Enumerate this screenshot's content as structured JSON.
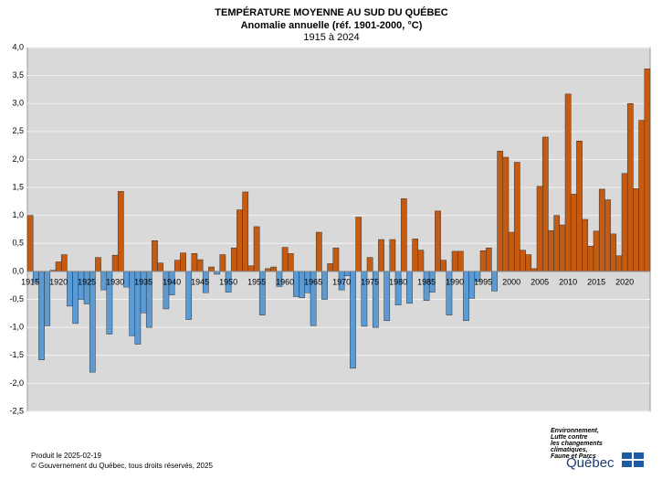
{
  "chart_data": {
    "type": "bar",
    "title": "TEMPÉRATURE MOYENNE AU SUD DU QUÉBEC",
    "subtitle": "Anomalie annuelle (réf. 1901-2000, °C)",
    "period": "1915 à 2024",
    "x": [
      1915,
      1916,
      1917,
      1918,
      1919,
      1920,
      1921,
      1922,
      1923,
      1924,
      1925,
      1926,
      1927,
      1928,
      1929,
      1930,
      1931,
      1932,
      1933,
      1934,
      1935,
      1936,
      1937,
      1938,
      1939,
      1940,
      1941,
      1942,
      1943,
      1944,
      1945,
      1946,
      1947,
      1948,
      1949,
      1950,
      1951,
      1952,
      1953,
      1954,
      1955,
      1956,
      1957,
      1958,
      1959,
      1960,
      1961,
      1962,
      1963,
      1964,
      1965,
      1966,
      1967,
      1968,
      1969,
      1970,
      1971,
      1972,
      1973,
      1974,
      1975,
      1976,
      1977,
      1978,
      1979,
      1980,
      1981,
      1982,
      1983,
      1984,
      1985,
      1986,
      1987,
      1988,
      1989,
      1990,
      1991,
      1992,
      1993,
      1994,
      1995,
      1996,
      1997,
      1998,
      1999,
      2000,
      2001,
      2002,
      2003,
      2004,
      2005,
      2006,
      2007,
      2008,
      2009,
      2010,
      2011,
      2012,
      2013,
      2014,
      2015,
      2016,
      2017,
      2018,
      2019,
      2020,
      2021,
      2022,
      2023,
      2024
    ],
    "values": [
      1.0,
      -0.2,
      -1.58,
      -0.97,
      0.02,
      0.17,
      0.3,
      -0.62,
      -0.93,
      -0.5,
      -0.58,
      -1.8,
      0.25,
      -0.33,
      -1.12,
      0.29,
      1.43,
      -0.28,
      -1.15,
      -1.3,
      -0.74,
      -1.0,
      0.55,
      0.15,
      -0.67,
      -0.42,
      0.2,
      0.33,
      -0.86,
      0.32,
      0.21,
      -0.38,
      0.08,
      -0.05,
      0.3,
      -0.37,
      0.42,
      1.1,
      1.42,
      0.1,
      0.8,
      -0.78,
      0.05,
      0.08,
      -0.27,
      0.43,
      0.32,
      -0.45,
      -0.47,
      -0.38,
      -0.97,
      0.7,
      -0.5,
      0.14,
      0.42,
      -0.33,
      -0.08,
      -1.73,
      0.97,
      -0.98,
      0.25,
      -1.0,
      0.57,
      -0.88,
      0.57,
      -0.6,
      1.3,
      -0.57,
      0.58,
      0.38,
      -0.52,
      -0.37,
      1.08,
      0.2,
      -0.78,
      0.36,
      0.36,
      -0.88,
      -0.48,
      -0.18,
      0.37,
      0.42,
      -0.35,
      2.15,
      2.04,
      0.7,
      1.95,
      0.38,
      0.3,
      0.05,
      1.52,
      2.4,
      0.73,
      1.0,
      0.83,
      3.17,
      1.38,
      2.33,
      0.93,
      0.45,
      0.72,
      1.47,
      1.28,
      0.67,
      0.28,
      1.75,
      3.0,
      1.48,
      2.7,
      3.62
    ],
    "positive_color": "#c55a11",
    "negative_color": "#5b9bd5",
    "xlim": [
      1914.5,
      2024.5
    ],
    "xticks": [
      1915,
      1920,
      1925,
      1930,
      1935,
      1940,
      1945,
      1950,
      1955,
      1960,
      1965,
      1970,
      1975,
      1980,
      1985,
      1990,
      1995,
      2000,
      2005,
      2010,
      2015,
      2020
    ],
    "ylim": [
      -2.5,
      4
    ],
    "yticks": [
      {
        "value": -2.5,
        "label": "-2,5"
      },
      {
        "value": -2,
        "label": "-2,0"
      },
      {
        "value": -1.5,
        "label": "-1,5"
      },
      {
        "value": -1,
        "label": "-1,0"
      },
      {
        "value": -0.5,
        "label": "-0,5"
      },
      {
        "value": 0,
        "label": "0,0"
      },
      {
        "value": 0.5,
        "label": "0,5"
      },
      {
        "value": 1,
        "label": "1,0"
      },
      {
        "value": 1.5,
        "label": "1,5"
      },
      {
        "value": 2,
        "label": "2,0"
      },
      {
        "value": 2.5,
        "label": "2,5"
      },
      {
        "value": 3,
        "label": "3,0"
      },
      {
        "value": 3.5,
        "label": "3,5"
      },
      {
        "value": 4,
        "label": "4,0"
      }
    ],
    "grid": true
  },
  "footer": {
    "produced": "Produit le 2025-02-19",
    "copyright": "© Gouvernement du Québec, tous droits réservés, 2025"
  },
  "logo": {
    "department": [
      "Environnement,",
      "Lutte contre",
      "les changements",
      "climatiques,",
      "Faune et Parcs"
    ],
    "name": "Québec"
  }
}
